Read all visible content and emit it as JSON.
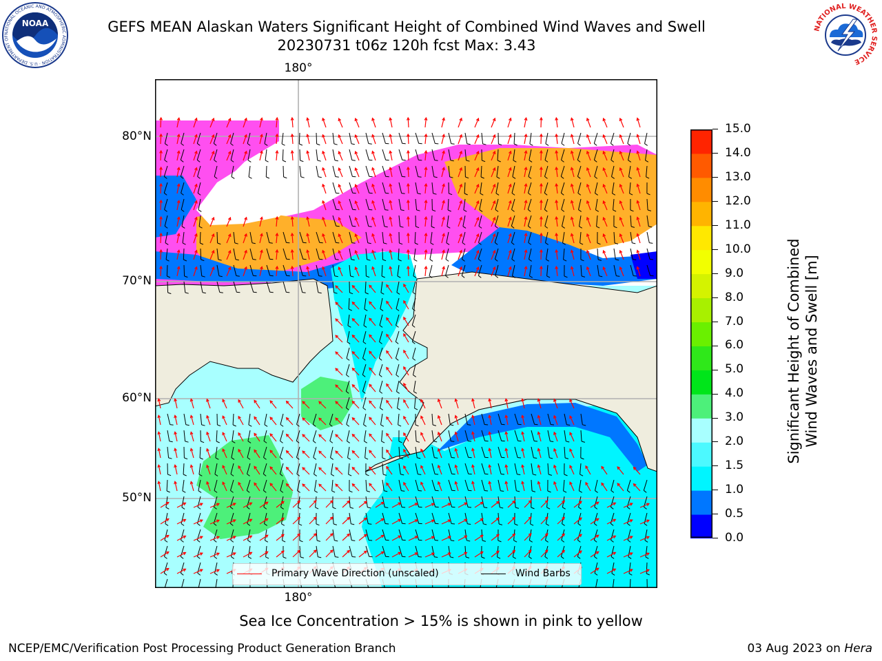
{
  "header": {
    "title_line1": "GEFS MEAN Alaskan Waters Significant Height of Combined Wind Waves and Swell",
    "title_line2": "20230731 t06z 120h fcst   Max: 3.43",
    "logo_left_text": "NOAA",
    "logo_left_ring_text": "NATIONAL OCEANIC AND ATMOSPHERIC ADMINISTRATION · U.S. DEPARTMENT OF COMMERCE",
    "logo_right_ring_text": "NATIONAL WEATHER SERVICE"
  },
  "map": {
    "lon_label_top": "180°",
    "lon_label_bottom": "180°",
    "lat_labels": [
      "80°N",
      "70°N",
      "60°N",
      "50°N"
    ],
    "colors": {
      "land": "#efedde",
      "ice_pink": "#ff4ff0",
      "ice_orange": "#ffb02a",
      "wave_direction": "#ff0000",
      "wind_barb": "#000000"
    }
  },
  "legend": {
    "wave_direction_label": "Primary Wave Direction (unscaled)",
    "wind_barbs_label": "Wind Barbs"
  },
  "colorbar": {
    "title_line1": "Significant Height of Combined",
    "title_line2": "Wind Waves and Swell [m]",
    "ticks": [
      "15.0",
      "14.0",
      "13.0",
      "12.0",
      "11.0",
      "10.0",
      "9.0",
      "8.0",
      "7.0",
      "6.0",
      "5.0",
      "4.0",
      "3.0",
      "2.0",
      "1.5",
      "1.0",
      "0.5",
      "0.0"
    ],
    "colors_bottom_to_top": [
      "#0000ff",
      "#0077ff",
      "#00f5ff",
      "#4cf9ff",
      "#a8ffff",
      "#4df07a",
      "#00e51a",
      "#2fe81a",
      "#6af000",
      "#a8f000",
      "#d4f300",
      "#f2ff00",
      "#ffe800",
      "#ffb400",
      "#ff8c00",
      "#ff5a00",
      "#ff2400"
    ]
  },
  "footer": {
    "note": "Sea Ice Concentration > 15% is shown in pink to yellow",
    "credit": "NCEP/EMC/Verification Post Processing Product Generation Branch",
    "date": "03 Aug 2023 on",
    "host": "Hera"
  }
}
